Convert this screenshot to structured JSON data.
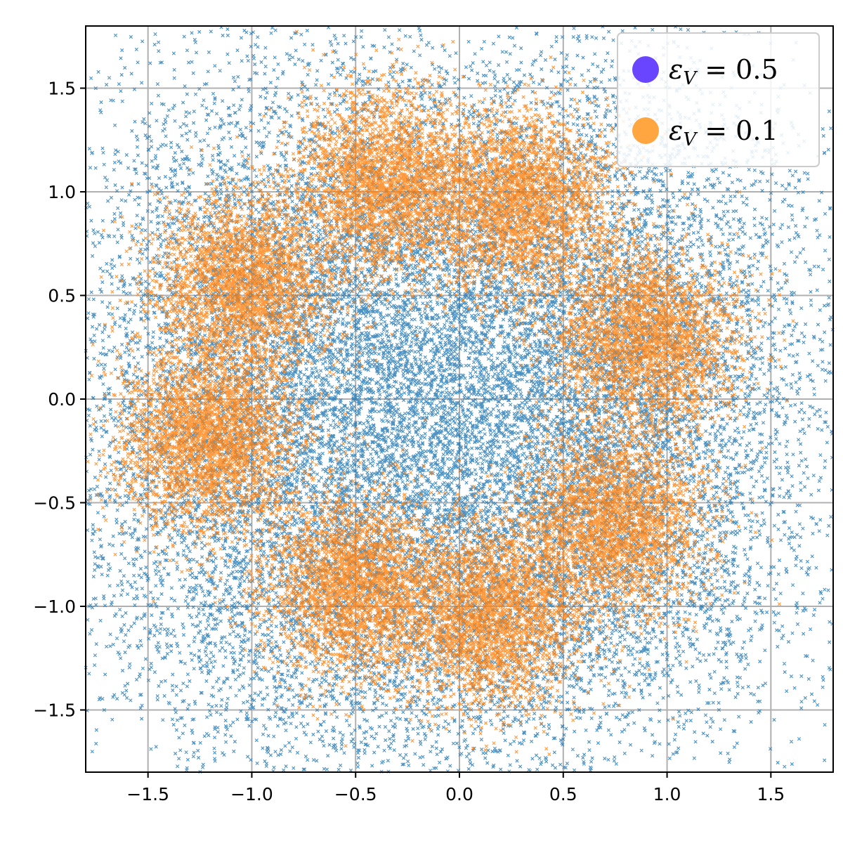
{
  "chart_data": {
    "type": "scatter",
    "title": "",
    "xlabel": "",
    "ylabel": "",
    "xlim": [
      -1.8,
      1.8
    ],
    "ylim": [
      -1.8,
      1.8
    ],
    "grid": true,
    "legend_placement": "top-right",
    "x_ticks": [
      -1.5,
      -1.0,
      -0.5,
      0.0,
      0.5,
      1.0,
      1.5
    ],
    "y_ticks": [
      -1.5,
      -1.0,
      -0.5,
      0.0,
      0.5,
      1.0,
      1.5
    ],
    "x_tick_labels": [
      "−1.5",
      "−1.0",
      "−0.5",
      "0.0",
      "0.5",
      "1.0",
      "1.5"
    ],
    "y_tick_labels": [
      "−1.5",
      "−1.0",
      "−0.5",
      "0.0",
      "0.5",
      "1.0",
      "1.5"
    ],
    "series": [
      {
        "name": "εV = 0.5",
        "legend_symbol": "ε",
        "legend_sub": "V",
        "legend_rest": " = 0.5",
        "marker": "x",
        "point_color": "#1f77b4",
        "legend_color": "#6a45ff",
        "distribution": {
          "mixture_centers": [
            [
              0.0,
              1.0
            ],
            [
              0.85,
              0.9
            ],
            [
              1.0,
              0.25
            ],
            [
              0.9,
              -0.3
            ],
            [
              0.85,
              -0.9
            ],
            [
              0.2,
              -1.0
            ],
            [
              -0.35,
              -1.0
            ],
            [
              -1.0,
              -0.95
            ],
            [
              -1.2,
              -0.25
            ],
            [
              -1.05,
              0.3
            ],
            [
              -1.0,
              0.9
            ],
            [
              -0.35,
              0.3
            ],
            [
              0.15,
              0.3
            ],
            [
              -0.4,
              -0.2
            ],
            [
              0.2,
              -0.25
            ]
          ],
          "spread": 0.5,
          "point_count": 22000
        }
      },
      {
        "name": "εV = 0.1",
        "legend_symbol": "ε",
        "legend_sub": "V",
        "legend_rest": " = 0.1",
        "marker": "x",
        "point_color": "#ff7f0e",
        "legend_color": "#ffa640",
        "distribution": {
          "mixture_centers": [
            [
              -0.35,
              1.05
            ],
            [
              0.3,
              0.95
            ],
            [
              0.9,
              0.3
            ],
            [
              0.75,
              -0.6
            ],
            [
              0.15,
              -1.05
            ],
            [
              -0.5,
              -0.9
            ],
            [
              -1.2,
              -0.2
            ],
            [
              -1.05,
              0.55
            ]
          ],
          "spread": 0.22,
          "point_count": 24000
        }
      }
    ]
  }
}
